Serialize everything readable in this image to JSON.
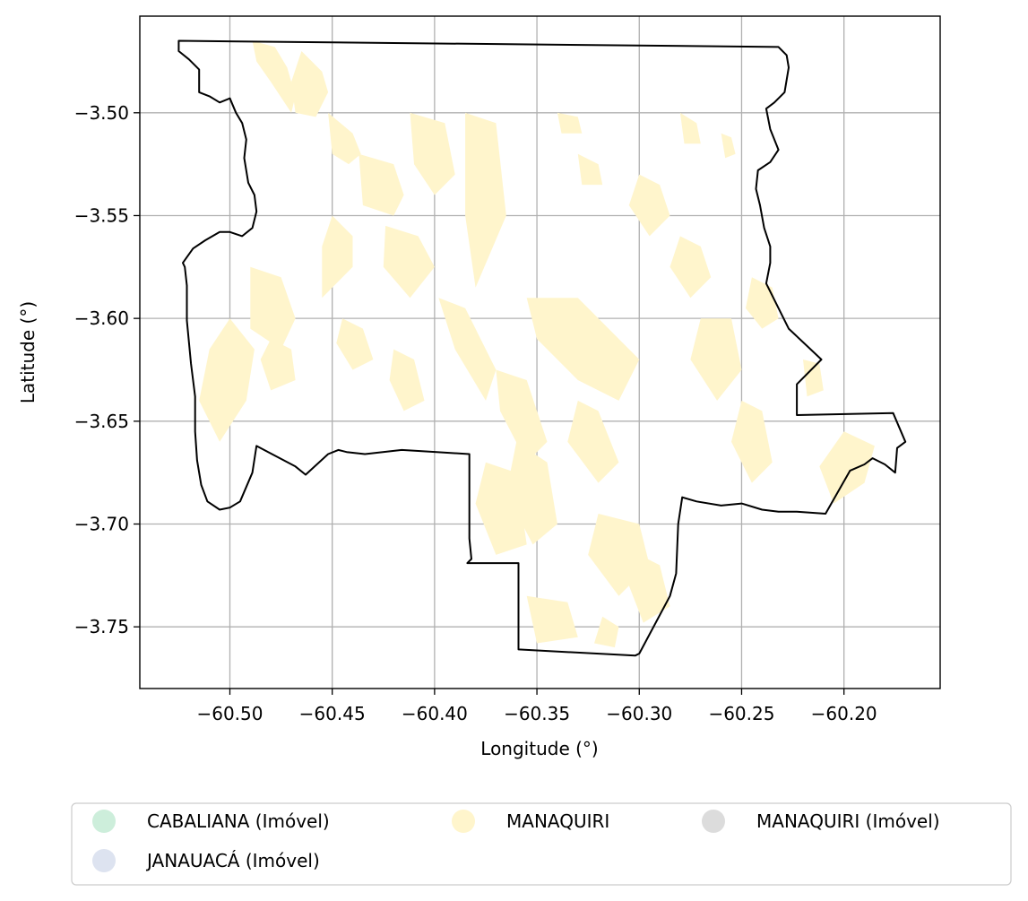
{
  "chart_data": {
    "type": "map",
    "xlabel": "Longitude (°)",
    "ylabel": "Latitude (°)",
    "xlim": [
      -60.544,
      -60.153
    ],
    "ylim": [
      -3.78,
      -3.453
    ],
    "grid": true,
    "x_ticks": [
      -60.5,
      -60.45,
      -60.4,
      -60.35,
      -60.3,
      -60.25,
      -60.2
    ],
    "y_ticks": [
      -3.5,
      -3.55,
      -3.6,
      -3.65,
      -3.7,
      -3.75
    ],
    "x_tick_labels": [
      "−60.50",
      "−60.45",
      "−60.40",
      "−60.35",
      "−60.30",
      "−60.25",
      "−60.20"
    ],
    "y_tick_labels": [
      "−3.50",
      "−3.55",
      "−3.60",
      "−3.65",
      "−3.70",
      "−3.75"
    ],
    "legend_position": "bottom",
    "legend": [
      {
        "label": "CABALIANA (Imóvel)",
        "color": "#cdeedb"
      },
      {
        "label": "MANAQUIRI",
        "color": "#fff5cc"
      },
      {
        "label": "MANAQUIRI (Imóvel)",
        "color": "#dcdcdc"
      },
      {
        "label": "JANAUACÁ (Imóvel)",
        "color": "#dde3f0"
      }
    ],
    "boundary_color": "#000000",
    "fill_color": "#fff5cc",
    "boundary": [
      [
        -60.525,
        -3.465
      ],
      [
        -60.232,
        -3.468
      ],
      [
        -60.228,
        -3.472
      ],
      [
        -60.227,
        -3.478
      ],
      [
        -60.229,
        -3.49
      ],
      [
        -60.234,
        -3.495
      ],
      [
        -60.238,
        -3.498
      ],
      [
        -60.236,
        -3.508
      ],
      [
        -60.232,
        -3.518
      ],
      [
        -60.236,
        -3.524
      ],
      [
        -60.242,
        -3.528
      ],
      [
        -60.243,
        -3.537
      ],
      [
        -60.241,
        -3.545
      ],
      [
        -60.239,
        -3.556
      ],
      [
        -60.236,
        -3.565
      ],
      [
        -60.236,
        -3.573
      ],
      [
        -60.238,
        -3.583
      ],
      [
        -60.227,
        -3.605
      ],
      [
        -60.211,
        -3.62
      ],
      [
        -60.223,
        -3.632
      ],
      [
        -60.223,
        -3.647
      ],
      [
        -60.176,
        -3.646
      ],
      [
        -60.17,
        -3.66
      ],
      [
        -60.174,
        -3.663
      ],
      [
        -60.175,
        -3.675
      ],
      [
        -60.18,
        -3.671
      ],
      [
        -60.186,
        -3.668
      ],
      [
        -60.19,
        -3.671
      ],
      [
        -60.197,
        -3.674
      ],
      [
        -60.205,
        -3.688
      ],
      [
        -60.209,
        -3.695
      ],
      [
        -60.223,
        -3.694
      ],
      [
        -60.232,
        -3.694
      ],
      [
        -60.24,
        -3.693
      ],
      [
        -60.25,
        -3.69
      ],
      [
        -60.26,
        -3.691
      ],
      [
        -60.272,
        -3.689
      ],
      [
        -60.279,
        -3.687
      ],
      [
        -60.281,
        -3.7
      ],
      [
        -60.282,
        -3.724
      ],
      [
        -60.285,
        -3.735
      ],
      [
        -60.3,
        -3.763
      ],
      [
        -60.302,
        -3.764
      ],
      [
        -60.359,
        -3.761
      ],
      [
        -60.359,
        -3.719
      ],
      [
        -60.384,
        -3.719
      ],
      [
        -60.382,
        -3.717
      ],
      [
        -60.383,
        -3.707
      ],
      [
        -60.383,
        -3.666
      ],
      [
        -60.399,
        -3.665
      ],
      [
        -60.416,
        -3.664
      ],
      [
        -60.434,
        -3.666
      ],
      [
        -60.443,
        -3.665
      ],
      [
        -60.447,
        -3.664
      ],
      [
        -60.452,
        -3.666
      ],
      [
        -60.463,
        -3.676
      ],
      [
        -60.468,
        -3.672
      ],
      [
        -60.487,
        -3.662
      ],
      [
        -60.489,
        -3.675
      ],
      [
        -60.495,
        -3.689
      ],
      [
        -60.5,
        -3.692
      ],
      [
        -60.505,
        -3.693
      ],
      [
        -60.511,
        -3.689
      ],
      [
        -60.514,
        -3.681
      ],
      [
        -60.516,
        -3.669
      ],
      [
        -60.517,
        -3.655
      ],
      [
        -60.517,
        -3.638
      ],
      [
        -60.519,
        -3.622
      ],
      [
        -60.521,
        -3.601
      ],
      [
        -60.521,
        -3.584
      ],
      [
        -60.522,
        -3.575
      ],
      [
        -60.523,
        -3.573
      ],
      [
        -60.518,
        -3.566
      ],
      [
        -60.512,
        -3.562
      ],
      [
        -60.505,
        -3.558
      ],
      [
        -60.5,
        -3.558
      ],
      [
        -60.494,
        -3.56
      ],
      [
        -60.489,
        -3.556
      ],
      [
        -60.487,
        -3.548
      ],
      [
        -60.488,
        -3.54
      ],
      [
        -60.491,
        -3.534
      ],
      [
        -60.493,
        -3.522
      ],
      [
        -60.492,
        -3.513
      ],
      [
        -60.494,
        -3.505
      ],
      [
        -60.497,
        -3.5
      ],
      [
        -60.5,
        -3.493
      ],
      [
        -60.505,
        -3.495
      ],
      [
        -60.51,
        -3.492
      ],
      [
        -60.515,
        -3.49
      ],
      [
        -60.515,
        -3.479
      ],
      [
        -60.52,
        -3.474
      ],
      [
        -60.525,
        -3.47
      ]
    ],
    "polygons": [
      [
        [
          -60.489,
          -3.465
        ],
        [
          -60.487,
          -3.475
        ],
        [
          -60.48,
          -3.485
        ],
        [
          -60.47,
          -3.5
        ],
        [
          -60.468,
          -3.492
        ],
        [
          -60.472,
          -3.478
        ],
        [
          -60.478,
          -3.468
        ]
      ],
      [
        [
          -60.465,
          -3.47
        ],
        [
          -60.455,
          -3.48
        ],
        [
          -60.452,
          -3.49
        ],
        [
          -60.458,
          -3.502
        ],
        [
          -60.468,
          -3.5
        ],
        [
          -60.47,
          -3.485
        ]
      ],
      [
        [
          -60.452,
          -3.5
        ],
        [
          -60.44,
          -3.51
        ],
        [
          -60.436,
          -3.52
        ],
        [
          -60.442,
          -3.525
        ],
        [
          -60.45,
          -3.52
        ]
      ],
      [
        [
          -60.45,
          -3.55
        ],
        [
          -60.44,
          -3.56
        ],
        [
          -60.44,
          -3.575
        ],
        [
          -60.455,
          -3.59
        ],
        [
          -60.455,
          -3.565
        ]
      ],
      [
        [
          -60.437,
          -3.52
        ],
        [
          -60.42,
          -3.525
        ],
        [
          -60.415,
          -3.54
        ],
        [
          -60.42,
          -3.55
        ],
        [
          -60.435,
          -3.545
        ]
      ],
      [
        [
          -60.412,
          -3.5
        ],
        [
          -60.395,
          -3.505
        ],
        [
          -60.39,
          -3.53
        ],
        [
          -60.4,
          -3.54
        ],
        [
          -60.41,
          -3.525
        ]
      ],
      [
        [
          -60.385,
          -3.5
        ],
        [
          -60.37,
          -3.505
        ],
        [
          -60.365,
          -3.55
        ],
        [
          -60.38,
          -3.585
        ],
        [
          -60.385,
          -3.55
        ]
      ],
      [
        [
          -60.424,
          -3.555
        ],
        [
          -60.408,
          -3.56
        ],
        [
          -60.4,
          -3.575
        ],
        [
          -60.412,
          -3.59
        ],
        [
          -60.425,
          -3.575
        ]
      ],
      [
        [
          -60.49,
          -3.575
        ],
        [
          -60.475,
          -3.58
        ],
        [
          -60.468,
          -3.6
        ],
        [
          -60.475,
          -3.615
        ],
        [
          -60.49,
          -3.605
        ]
      ],
      [
        [
          -60.5,
          -3.6
        ],
        [
          -60.488,
          -3.615
        ],
        [
          -60.492,
          -3.64
        ],
        [
          -60.505,
          -3.66
        ],
        [
          -60.515,
          -3.64
        ],
        [
          -60.51,
          -3.615
        ]
      ],
      [
        [
          -60.48,
          -3.61
        ],
        [
          -60.47,
          -3.615
        ],
        [
          -60.468,
          -3.63
        ],
        [
          -60.48,
          -3.635
        ],
        [
          -60.485,
          -3.62
        ]
      ],
      [
        [
          -60.398,
          -3.59
        ],
        [
          -60.385,
          -3.595
        ],
        [
          -60.37,
          -3.625
        ],
        [
          -60.375,
          -3.64
        ],
        [
          -60.39,
          -3.615
        ]
      ],
      [
        [
          -60.37,
          -3.625
        ],
        [
          -60.355,
          -3.63
        ],
        [
          -60.345,
          -3.66
        ],
        [
          -60.355,
          -3.67
        ],
        [
          -60.368,
          -3.645
        ]
      ],
      [
        [
          -60.355,
          -3.59
        ],
        [
          -60.33,
          -3.59
        ],
        [
          -60.3,
          -3.62
        ],
        [
          -60.31,
          -3.64
        ],
        [
          -60.33,
          -3.63
        ],
        [
          -60.35,
          -3.61
        ]
      ],
      [
        [
          -60.33,
          -3.64
        ],
        [
          -60.32,
          -3.645
        ],
        [
          -60.31,
          -3.67
        ],
        [
          -60.32,
          -3.68
        ],
        [
          -60.335,
          -3.66
        ]
      ],
      [
        [
          -60.36,
          -3.66
        ],
        [
          -60.345,
          -3.67
        ],
        [
          -60.34,
          -3.7
        ],
        [
          -60.352,
          -3.71
        ],
        [
          -60.365,
          -3.685
        ]
      ],
      [
        [
          -60.375,
          -3.67
        ],
        [
          -60.36,
          -3.675
        ],
        [
          -60.355,
          -3.71
        ],
        [
          -60.37,
          -3.715
        ],
        [
          -60.38,
          -3.69
        ]
      ],
      [
        [
          -60.32,
          -3.695
        ],
        [
          -60.3,
          -3.7
        ],
        [
          -60.295,
          -3.72
        ],
        [
          -60.31,
          -3.735
        ],
        [
          -60.325,
          -3.715
        ]
      ],
      [
        [
          -60.3,
          -3.715
        ],
        [
          -60.29,
          -3.72
        ],
        [
          -60.285,
          -3.74
        ],
        [
          -60.298,
          -3.748
        ],
        [
          -60.305,
          -3.73
        ]
      ],
      [
        [
          -60.355,
          -3.735
        ],
        [
          -60.335,
          -3.738
        ],
        [
          -60.33,
          -3.755
        ],
        [
          -60.35,
          -3.758
        ]
      ],
      [
        [
          -60.318,
          -3.745
        ],
        [
          -60.31,
          -3.75
        ],
        [
          -60.312,
          -3.76
        ],
        [
          -60.322,
          -3.758
        ]
      ],
      [
        [
          -60.3,
          -3.53
        ],
        [
          -60.29,
          -3.535
        ],
        [
          -60.285,
          -3.55
        ],
        [
          -60.295,
          -3.56
        ],
        [
          -60.305,
          -3.545
        ]
      ],
      [
        [
          -60.28,
          -3.56
        ],
        [
          -60.27,
          -3.565
        ],
        [
          -60.265,
          -3.58
        ],
        [
          -60.275,
          -3.59
        ],
        [
          -60.285,
          -3.575
        ]
      ],
      [
        [
          -60.27,
          -3.6
        ],
        [
          -60.255,
          -3.6
        ],
        [
          -60.25,
          -3.625
        ],
        [
          -60.262,
          -3.64
        ],
        [
          -60.275,
          -3.62
        ]
      ],
      [
        [
          -60.25,
          -3.64
        ],
        [
          -60.24,
          -3.645
        ],
        [
          -60.235,
          -3.67
        ],
        [
          -60.245,
          -3.68
        ],
        [
          -60.255,
          -3.66
        ]
      ],
      [
        [
          -60.245,
          -3.58
        ],
        [
          -60.235,
          -3.585
        ],
        [
          -60.232,
          -3.6
        ],
        [
          -60.24,
          -3.605
        ],
        [
          -60.248,
          -3.595
        ]
      ],
      [
        [
          -60.2,
          -3.655
        ],
        [
          -60.185,
          -3.662
        ],
        [
          -60.19,
          -3.68
        ],
        [
          -60.205,
          -3.69
        ],
        [
          -60.212,
          -3.672
        ]
      ],
      [
        [
          -60.22,
          -3.62
        ],
        [
          -60.212,
          -3.622
        ],
        [
          -60.21,
          -3.635
        ],
        [
          -60.218,
          -3.638
        ]
      ],
      [
        [
          -60.34,
          -3.5
        ],
        [
          -60.33,
          -3.502
        ],
        [
          -60.328,
          -3.51
        ],
        [
          -60.338,
          -3.51
        ]
      ],
      [
        [
          -60.33,
          -3.52
        ],
        [
          -60.32,
          -3.525
        ],
        [
          -60.318,
          -3.535
        ],
        [
          -60.328,
          -3.535
        ]
      ],
      [
        [
          -60.26,
          -3.51
        ],
        [
          -60.255,
          -3.512
        ],
        [
          -60.253,
          -3.52
        ],
        [
          -60.258,
          -3.522
        ]
      ],
      [
        [
          -60.28,
          -3.5
        ],
        [
          -60.272,
          -3.505
        ],
        [
          -60.27,
          -3.515
        ],
        [
          -60.278,
          -3.515
        ]
      ],
      [
        [
          -60.445,
          -3.6
        ],
        [
          -60.435,
          -3.605
        ],
        [
          -60.43,
          -3.62
        ],
        [
          -60.44,
          -3.625
        ],
        [
          -60.448,
          -3.612
        ]
      ],
      [
        [
          -60.42,
          -3.615
        ],
        [
          -60.41,
          -3.62
        ],
        [
          -60.405,
          -3.64
        ],
        [
          -60.415,
          -3.645
        ],
        [
          -60.422,
          -3.63
        ]
      ]
    ]
  }
}
